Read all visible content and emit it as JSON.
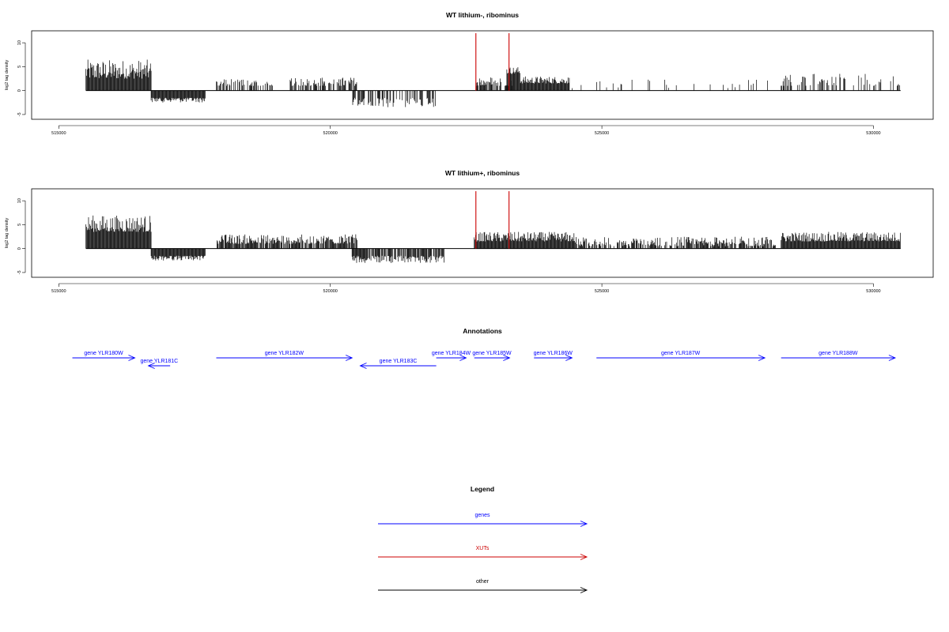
{
  "chart_data": [
    {
      "type": "bar",
      "title": "WT lithium-, ribominus",
      "ylabel": "log2 tag density",
      "xlabel": "",
      "xlim": [
        514500,
        531100
      ],
      "ylim": [
        -6,
        12.5
      ],
      "x_ticks": [
        515000,
        520000,
        525000,
        530000
      ],
      "y_ticks": [
        -5,
        0,
        5,
        10
      ],
      "series": [
        {
          "color": "#000000",
          "segments": [
            {
              "from": 515500,
              "to": 516700,
              "base": 2.5,
              "amp": 6.5,
              "min": 0.5
            },
            {
              "from": 516700,
              "to": 517700,
              "base": -1.5,
              "amp": -2.5,
              "min": -0.3
            },
            {
              "from": 517900,
              "to": 519000,
              "base": 1.0,
              "amp": 2.5,
              "min": 0.0,
              "sparse": 0.55
            },
            {
              "from": 519200,
              "to": 520500,
              "base": 1.0,
              "amp": 2.8,
              "min": 0.0,
              "sparse": 0.55
            },
            {
              "from": 520400,
              "to": 522000,
              "base": -1.5,
              "amp": -3.5,
              "min": -0.3,
              "sparse": 0.5
            },
            {
              "from": 522650,
              "to": 523350,
              "base": 1.0,
              "amp": 3.0,
              "min": 0.0,
              "sparse": 0.6
            },
            {
              "from": 523250,
              "to": 523500,
              "base": 3.5,
              "amp": 5.0,
              "min": 1.0
            },
            {
              "from": 523500,
              "to": 524400,
              "base": 1.5,
              "amp": 3.0,
              "min": 0.2
            },
            {
              "from": 524450,
              "to": 528200,
              "base": 0.5,
              "amp": 2.5,
              "min": 0.0,
              "sparse": 0.08
            },
            {
              "from": 528300,
              "to": 530500,
              "base": 1.0,
              "amp": 3.5,
              "min": 0.0,
              "sparse": 0.35
            }
          ]
        },
        {
          "color": "#cc0000",
          "markers": [
            522680,
            523290
          ],
          "height": 12
        }
      ]
    },
    {
      "type": "bar",
      "title": "WT lithium+, ribominus",
      "ylabel": "log2 tag density",
      "xlabel": "",
      "xlim": [
        514500,
        531100
      ],
      "ylim": [
        -6,
        12.5
      ],
      "x_ticks": [
        515000,
        520000,
        525000,
        530000
      ],
      "y_ticks": [
        -5,
        0,
        5,
        10
      ],
      "series": [
        {
          "color": "#000000",
          "segments": [
            {
              "from": 515500,
              "to": 516700,
              "base": 3.5,
              "amp": 7.0,
              "min": 1.0
            },
            {
              "from": 516700,
              "to": 517700,
              "base": -1.5,
              "amp": -2.5,
              "min": -0.3
            },
            {
              "from": 517900,
              "to": 520500,
              "base": 1.0,
              "amp": 3.0,
              "min": 0.2,
              "sparse": 0.85
            },
            {
              "from": 520400,
              "to": 522100,
              "base": -1.5,
              "amp": -3.0,
              "min": -0.3,
              "sparse": 0.8
            },
            {
              "from": 522650,
              "to": 524500,
              "base": 1.5,
              "amp": 3.5,
              "min": 0.3
            },
            {
              "from": 524500,
              "to": 528200,
              "base": 0.5,
              "amp": 2.5,
              "min": 0.0,
              "sparse": 0.7
            },
            {
              "from": 528300,
              "to": 530500,
              "base": 1.5,
              "amp": 3.5,
              "min": 0.2
            }
          ]
        },
        {
          "color": "#cc0000",
          "markers": [
            522680,
            523290
          ],
          "height": 12
        }
      ]
    }
  ],
  "annotations": {
    "title": "Annotations",
    "genes": [
      {
        "label": "gene YLR180W",
        "start": 515250,
        "end": 516400,
        "strand": "+",
        "row": 0
      },
      {
        "label": "gene YLR181C",
        "start": 517050,
        "end": 516650,
        "strand": "-",
        "row": 1
      },
      {
        "label": "gene YLR182W",
        "start": 517900,
        "end": 520400,
        "strand": "+",
        "row": 0
      },
      {
        "label": "gene YLR183C",
        "start": 521950,
        "end": 520550,
        "strand": "-",
        "row": 1
      },
      {
        "label": "gene YLR184W",
        "start": 521950,
        "end": 522500,
        "strand": "+",
        "row": 0
      },
      {
        "label": "gene YLR185W",
        "start": 522650,
        "end": 523300,
        "strand": "+",
        "row": 0
      },
      {
        "label": "gene YLR186W",
        "start": 523750,
        "end": 524450,
        "strand": "+",
        "row": 0
      },
      {
        "label": "gene YLR187W",
        "start": 524900,
        "end": 528000,
        "strand": "+",
        "row": 0
      },
      {
        "label": "gene YLR188W",
        "start": 528300,
        "end": 530400,
        "strand": "+",
        "row": 0
      }
    ],
    "color": "#0000ff"
  },
  "legend": {
    "title": "Legend",
    "items": [
      {
        "label": "genes",
        "color": "#0000ff"
      },
      {
        "label": "XUTs",
        "color": "#cc0000"
      },
      {
        "label": "other",
        "color": "#000000"
      }
    ]
  }
}
